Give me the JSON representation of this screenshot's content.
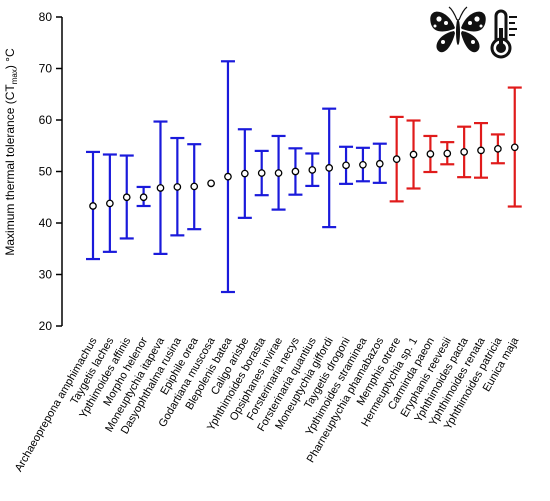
{
  "chart_data": {
    "type": "scatter",
    "title": "",
    "ylabel": "Maximum thermal tolerance (CT",
    "ylabel_sub": "max",
    "ylabel_unit": ") °C",
    "xlabel": "",
    "ylim": [
      20,
      80
    ],
    "yticks": [
      20,
      30,
      40,
      50,
      60,
      70,
      80
    ],
    "grid": false,
    "error_bars": true,
    "colors": {
      "blue": "#1a1adb",
      "red": "#e01b1b",
      "marker_edge": "#000000",
      "marker_fill": "#ffffff"
    },
    "icons": [
      "butterfly-icon",
      "thermometer-icon"
    ],
    "points": [
      {
        "label": "Archaeoprepona amphimachus",
        "mean": 43.3,
        "lo": 33.0,
        "hi": 53.8,
        "color": "blue"
      },
      {
        "label": "Taygetis laches",
        "mean": 43.8,
        "lo": 34.4,
        "hi": 53.3,
        "color": "blue"
      },
      {
        "label": "Ypthimoides affinis",
        "mean": 45.0,
        "lo": 37.0,
        "hi": 53.1,
        "color": "blue"
      },
      {
        "label": "Morpho helenor",
        "mean": 45.0,
        "lo": 43.3,
        "hi": 47.0,
        "color": "blue"
      },
      {
        "label": "Moneuptychia itapeva",
        "mean": 46.8,
        "lo": 34.0,
        "hi": 59.7,
        "color": "blue"
      },
      {
        "label": "Dasyophthalma rusina",
        "mean": 47.0,
        "lo": 37.6,
        "hi": 56.5,
        "color": "blue"
      },
      {
        "label": "Epiphile orea",
        "mean": 47.1,
        "lo": 38.8,
        "hi": 55.3,
        "color": "blue"
      },
      {
        "label": "Godartiana muscosa",
        "mean": 47.7,
        "lo": 47.7,
        "hi": 47.7,
        "color": "blue"
      },
      {
        "label": "Blepolenis batea",
        "mean": 49.0,
        "lo": 26.6,
        "hi": 71.4,
        "color": "blue"
      },
      {
        "label": "Caligo arisbe",
        "mean": 49.6,
        "lo": 41.0,
        "hi": 58.2,
        "color": "blue"
      },
      {
        "label": "Yphthimoides borasta",
        "mean": 49.7,
        "lo": 45.4,
        "hi": 54.0,
        "color": "blue"
      },
      {
        "label": "Opsiphanes invirae",
        "mean": 49.7,
        "lo": 42.6,
        "hi": 56.9,
        "color": "blue"
      },
      {
        "label": "Forsterinaria necys",
        "mean": 50.0,
        "lo": 45.5,
        "hi": 54.5,
        "color": "blue"
      },
      {
        "label": "Forsterinaria quantius",
        "mean": 50.3,
        "lo": 47.2,
        "hi": 53.5,
        "color": "blue"
      },
      {
        "label": "Moneuptychia giffordi",
        "mean": 50.7,
        "lo": 39.2,
        "hi": 62.2,
        "color": "blue"
      },
      {
        "label": "Taygetis drogoni",
        "mean": 51.2,
        "lo": 47.6,
        "hi": 54.8,
        "color": "blue"
      },
      {
        "label": "Ypthimoides straminea",
        "mean": 51.3,
        "lo": 48.1,
        "hi": 54.6,
        "color": "blue"
      },
      {
        "label": "Pharneuptychia phamabazos",
        "mean": 51.5,
        "lo": 47.8,
        "hi": 55.4,
        "color": "blue"
      },
      {
        "label": "Memphis otrere",
        "mean": 52.4,
        "lo": 44.2,
        "hi": 60.6,
        "color": "red"
      },
      {
        "label": "Hermeuptychia sp. 1",
        "mean": 53.3,
        "lo": 46.7,
        "hi": 59.9,
        "color": "red"
      },
      {
        "label": "Carminda paeon",
        "mean": 53.4,
        "lo": 49.9,
        "hi": 56.9,
        "color": "red"
      },
      {
        "label": "Eryphanis reevesii",
        "mean": 53.5,
        "lo": 51.4,
        "hi": 55.7,
        "color": "red"
      },
      {
        "label": "Yphthimoides pacta",
        "mean": 53.8,
        "lo": 48.9,
        "hi": 58.7,
        "color": "red"
      },
      {
        "label": "Yphthimoides renata",
        "mean": 54.1,
        "lo": 48.8,
        "hi": 59.4,
        "color": "red"
      },
      {
        "label": "Yphthimoides patricia",
        "mean": 54.4,
        "lo": 51.6,
        "hi": 57.2,
        "color": "red"
      },
      {
        "label": "Eunica maja",
        "mean": 54.7,
        "lo": 43.2,
        "hi": 66.3,
        "color": "red"
      }
    ]
  }
}
